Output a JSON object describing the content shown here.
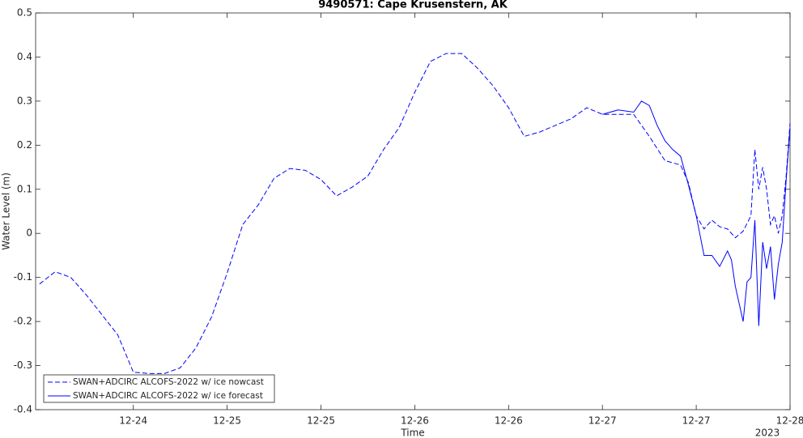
{
  "chart_data": {
    "type": "line",
    "title": "9490571: Cape Krusenstern, AK",
    "x_label": "Time",
    "y_label": "Water Level (m)",
    "x_offset_label": "2023",
    "xlim": [
      -0.5,
      96
    ],
    "ylim": [
      -0.4,
      0.5
    ],
    "xticks": [
      {
        "value": 12,
        "label": "12-24"
      },
      {
        "value": 24,
        "label": "12-25"
      },
      {
        "value": 36,
        "label": "12-25"
      },
      {
        "value": 48,
        "label": "12-26"
      },
      {
        "value": 60,
        "label": "12-26"
      },
      {
        "value": 72,
        "label": "12-27"
      },
      {
        "value": 84,
        "label": "12-27"
      },
      {
        "value": 96,
        "label": "12-28"
      }
    ],
    "yticks": [
      -0.4,
      -0.3,
      -0.2,
      -0.1,
      0,
      0.1,
      0.2,
      0.3,
      0.4,
      0.5
    ],
    "legend": "lower left",
    "series": [
      {
        "name": "SWAN+ADCIRC ALCOFS-2022 w/ ice nowcast",
        "color": "#0000ff",
        "style": "dashed",
        "x": [
          0,
          2,
          4,
          6,
          8,
          10,
          12,
          14,
          16,
          18,
          20,
          22,
          24,
          26,
          28,
          30,
          32,
          34,
          36,
          38,
          40,
          42,
          44,
          46,
          48,
          50,
          52,
          54,
          56,
          58,
          60,
          62,
          64,
          66,
          68,
          70,
          72,
          74,
          76,
          78,
          80,
          81,
          82,
          83,
          84,
          85,
          86,
          87,
          88,
          89,
          90,
          91,
          91.5,
          92,
          92.5,
          93,
          93.5,
          94,
          94.5,
          95,
          95.5,
          96
        ],
        "values": [
          -0.115,
          -0.087,
          -0.1,
          -0.14,
          -0.185,
          -0.23,
          -0.315,
          -0.318,
          -0.318,
          -0.305,
          -0.26,
          -0.19,
          -0.09,
          0.02,
          0.065,
          0.125,
          0.147,
          0.143,
          0.122,
          0.085,
          0.105,
          0.13,
          0.19,
          0.24,
          0.32,
          0.39,
          0.408,
          0.408,
          0.375,
          0.335,
          0.285,
          0.22,
          0.23,
          0.245,
          0.26,
          0.285,
          0.27,
          0.27,
          0.27,
          0.22,
          0.165,
          0.16,
          0.155,
          0.115,
          0.04,
          0.01,
          0.03,
          0.015,
          0.01,
          -0.01,
          0.005,
          0.04,
          0.19,
          0.1,
          0.15,
          0.1,
          0.02,
          0.04,
          0.0,
          0.04,
          0.13,
          0.25
        ]
      },
      {
        "name": "SWAN+ADCIRC ALCOFS-2022 w/ ice forecast",
        "color": "#0000ff",
        "style": "solid",
        "x": [
          72,
          74,
          76,
          77,
          78,
          79,
          80,
          81,
          82,
          83,
          84,
          85,
          86,
          87,
          88,
          88.5,
          89,
          90,
          90.5,
          91,
          91.5,
          92,
          92.5,
          93,
          93.5,
          94,
          94.5,
          95,
          95.5,
          96
        ],
        "values": [
          0.27,
          0.28,
          0.275,
          0.3,
          0.29,
          0.245,
          0.21,
          0.19,
          0.175,
          0.11,
          0.04,
          -0.05,
          -0.05,
          -0.075,
          -0.04,
          -0.06,
          -0.12,
          -0.2,
          -0.11,
          -0.1,
          0.03,
          -0.21,
          -0.02,
          -0.08,
          -0.03,
          -0.15,
          -0.07,
          -0.02,
          0.12,
          0.24
        ]
      }
    ]
  }
}
